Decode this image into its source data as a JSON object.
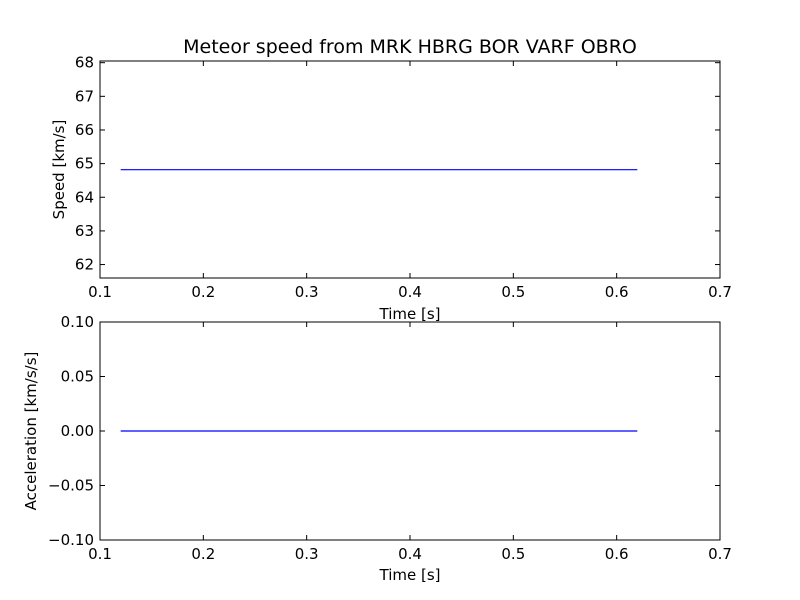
{
  "chart_data": [
    {
      "type": "line",
      "title": "Meteor speed from  MRK HBRG BOR VARF OBRO",
      "xlabel": "Time [s]",
      "ylabel": "Speed [km/s]",
      "xlim": [
        0.1,
        0.7
      ],
      "ylim": [
        61.6,
        68.05
      ],
      "xticks": [
        0.1,
        0.2,
        0.3,
        0.4,
        0.5,
        0.6,
        0.7
      ],
      "xtick_labels": [
        "0.1",
        "0.2",
        "0.3",
        "0.4",
        "0.5",
        "0.6",
        "0.7"
      ],
      "yticks": [
        62,
        63,
        64,
        65,
        66,
        67,
        68
      ],
      "ytick_labels": [
        "62",
        "63",
        "64",
        "65",
        "66",
        "67",
        "68"
      ],
      "grid": false,
      "series": [
        {
          "color": "#0000ff",
          "x": [
            0.12,
            0.62
          ],
          "y": [
            64.82,
            64.82
          ]
        }
      ]
    },
    {
      "type": "line",
      "title": "",
      "xlabel": "Time [s]",
      "ylabel": "Acceleration [km/s/s]",
      "xlim": [
        0.1,
        0.7
      ],
      "ylim": [
        -0.1,
        0.1
      ],
      "xticks": [
        0.1,
        0.2,
        0.3,
        0.4,
        0.5,
        0.6,
        0.7
      ],
      "xtick_labels": [
        "0.1",
        "0.2",
        "0.3",
        "0.4",
        "0.5",
        "0.6",
        "0.7"
      ],
      "yticks": [
        -0.1,
        -0.05,
        0.0,
        0.05,
        0.1
      ],
      "ytick_labels": [
        "−0.10",
        "−0.05",
        "0.00",
        "0.05",
        "0.10"
      ],
      "grid": false,
      "series": [
        {
          "color": "#0000ff",
          "x": [
            0.12,
            0.62
          ],
          "y": [
            0.0,
            0.0
          ]
        }
      ]
    }
  ]
}
